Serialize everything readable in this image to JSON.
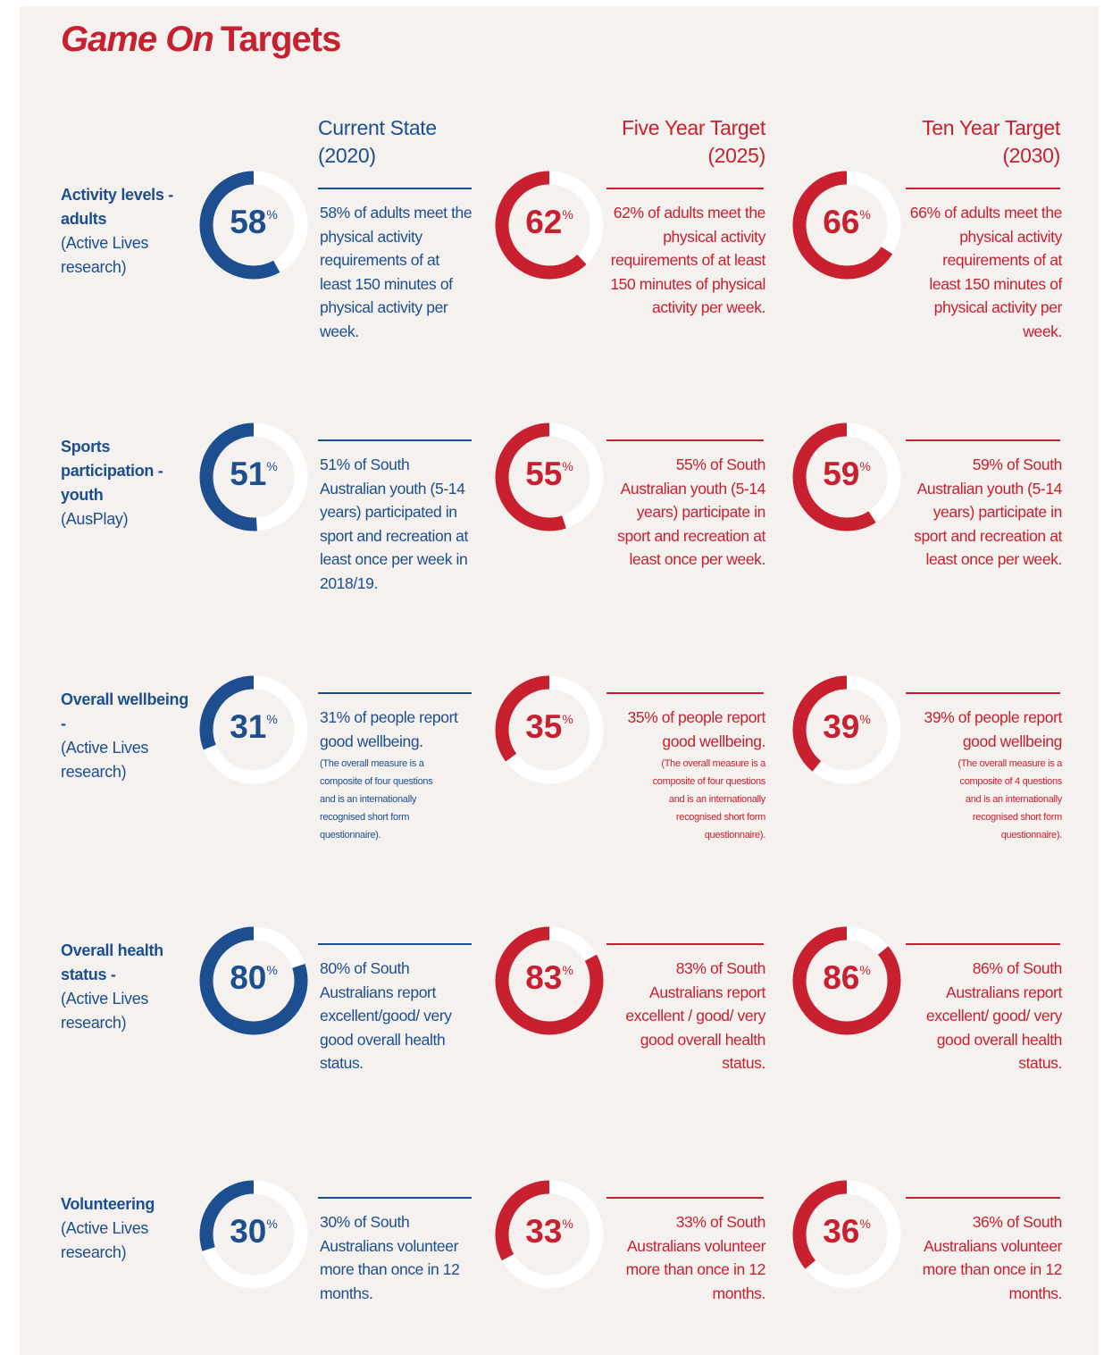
{
  "header": {
    "title_emphasis": "Game On",
    "title_rest": "Targets"
  },
  "columns": [
    {
      "name": "Current State",
      "period": "(2020)",
      "color": "#1d4e8f",
      "align": "left"
    },
    {
      "name": "Five Year Target",
      "period": "(2025)",
      "color": "#c8202f",
      "align": "right"
    },
    {
      "name": "Ten Year Target",
      "period": "(2030)",
      "color": "#c8202f",
      "align": "right"
    }
  ],
  "rows": [
    {
      "label": "Activity levels - adults",
      "source": "(Active Lives research)",
      "cells": [
        {
          "value": 58,
          "unit": "%",
          "text": "58% of adults meet the physical activity requirements of at least 150 minutes of physical activity per week."
        },
        {
          "value": 62,
          "unit": "%",
          "text": "62% of adults meet the physical activity requirements of at least 150 minutes of physical activity per week."
        },
        {
          "value": 66,
          "unit": "%",
          "text": "66% of adults meet the physical activity requirements of at least 150 minutes of physical activity per week."
        }
      ]
    },
    {
      "label": "Sports participation - youth",
      "source": "(AusPlay)",
      "cells": [
        {
          "value": 51,
          "unit": "%",
          "text": "51% of South Australian youth (5-14 years) participated in sport and recreation at least once per week in 2018/19."
        },
        {
          "value": 55,
          "unit": "%",
          "text": "55% of South Australian youth (5-14 years) participate in sport and recreation at least once per week."
        },
        {
          "value": 59,
          "unit": "%",
          "text": "59% of South Australian youth (5-14 years) participate in sport and recreation at least once per week."
        }
      ]
    },
    {
      "label": "Overall wellbeing -",
      "source": "(Active Lives research)",
      "cells": [
        {
          "value": 31,
          "unit": "%",
          "text": "31% of people report good wellbeing.",
          "note": "(The overall measure is a composite of four questions and is an internationally recognised short form questionnaire)."
        },
        {
          "value": 35,
          "unit": "%",
          "text": "35% of people report good wellbeing.",
          "note": "(The overall measure is a composite of four questions and is an internationally recognised short form questionnaire)."
        },
        {
          "value": 39,
          "unit": "%",
          "text": "39% of people report good wellbeing",
          "note": "(The overall measure is a composite of 4 questions and is an internationally recognised short form questionnaire)."
        }
      ]
    },
    {
      "label": "Overall health status -",
      "source": "(Active Lives research)",
      "cells": [
        {
          "value": 80,
          "unit": "%",
          "text": "80% of South Australians report excellent/good/ very good overall health status."
        },
        {
          "value": 83,
          "unit": "%",
          "text": "83% of South Australians report excellent / good/ very good overall health status."
        },
        {
          "value": 86,
          "unit": "%",
          "text": "86% of South Australians report excellent/ good/ very good overall health status."
        }
      ]
    },
    {
      "label": "Volunteering",
      "source": "(Active Lives research)",
      "cells": [
        {
          "value": 30,
          "unit": "%",
          "text": "30% of South Australians volunteer more than once in 12 months."
        },
        {
          "value": 33,
          "unit": "%",
          "text": "33% of South Australians volunteer more than once in 12 months."
        },
        {
          "value": 36,
          "unit": "%",
          "text": "36% of South Australians volunteer more than once in 12 months."
        }
      ]
    }
  ]
}
